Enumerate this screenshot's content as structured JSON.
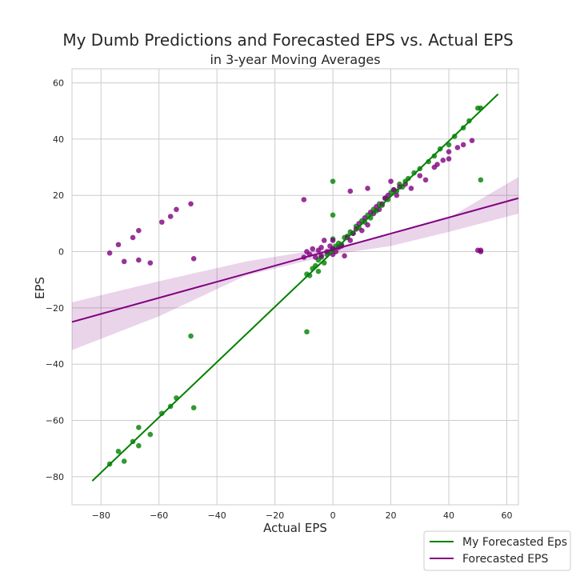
{
  "chart_data": {
    "type": "scatter",
    "title": "My Dumb Predictions and Forecasted EPS vs. Actual EPS",
    "subtitle": "in 3-year Moving Averages",
    "xlabel": "Actual EPS",
    "ylabel": "EPS",
    "xlim": [
      -90,
      64
    ],
    "ylim": [
      -90,
      65
    ],
    "xticks": [
      -80,
      -60,
      -40,
      -20,
      0,
      20,
      40,
      60
    ],
    "yticks": [
      -80,
      -60,
      -40,
      -20,
      0,
      20,
      40,
      60
    ],
    "grid": true,
    "legend_position": "bottom-right",
    "series": [
      {
        "name": "My Forecasted Eps",
        "color": "#008000",
        "points": [
          [
            -77,
            -75.5
          ],
          [
            -74,
            -71
          ],
          [
            -72,
            -74.5
          ],
          [
            -69,
            -67.5
          ],
          [
            -67,
            -69
          ],
          [
            -67,
            -62.5
          ],
          [
            -63,
            -65
          ],
          [
            -59,
            -57.5
          ],
          [
            -56,
            -55
          ],
          [
            -54,
            -52
          ],
          [
            -49,
            -30
          ],
          [
            -48,
            -55.5
          ],
          [
            -9,
            -28.5
          ],
          [
            -9,
            -8
          ],
          [
            -8,
            -8.5
          ],
          [
            -7,
            -6
          ],
          [
            -6,
            -5
          ],
          [
            -5,
            -7
          ],
          [
            -5,
            -3
          ],
          [
            -4,
            -2
          ],
          [
            -3,
            -4
          ],
          [
            -2,
            -1
          ],
          [
            -1,
            0
          ],
          [
            0,
            1
          ],
          [
            0,
            25
          ],
          [
            0,
            13
          ],
          [
            0,
            4.5
          ],
          [
            1,
            2
          ],
          [
            2,
            3
          ],
          [
            3,
            2.5
          ],
          [
            4,
            5
          ],
          [
            5,
            5.5
          ],
          [
            6,
            7
          ],
          [
            7,
            6.5
          ],
          [
            8,
            9
          ],
          [
            9,
            8.5
          ],
          [
            10,
            11
          ],
          [
            11,
            10.5
          ],
          [
            12,
            13
          ],
          [
            13,
            12
          ],
          [
            14,
            15
          ],
          [
            15,
            14.5
          ],
          [
            16,
            17
          ],
          [
            17,
            16.5
          ],
          [
            18,
            19
          ],
          [
            19,
            18.5
          ],
          [
            20,
            21
          ],
          [
            21,
            22
          ],
          [
            22,
            21.5
          ],
          [
            23,
            24
          ],
          [
            24,
            23
          ],
          [
            25,
            25
          ],
          [
            26,
            26
          ],
          [
            28,
            28
          ],
          [
            30,
            29.5
          ],
          [
            33,
            32
          ],
          [
            35,
            34
          ],
          [
            37,
            36.5
          ],
          [
            40,
            38
          ],
          [
            42,
            41
          ],
          [
            45,
            44
          ],
          [
            47,
            46.5
          ],
          [
            50,
            51
          ],
          [
            51,
            51
          ],
          [
            51,
            25.5
          ]
        ],
        "fit": {
          "x": [
            -83,
            57
          ],
          "y": [
            -81.5,
            56
          ]
        }
      },
      {
        "name": "Forecasted EPS",
        "color": "#800080",
        "points": [
          [
            -77,
            -0.5
          ],
          [
            -74,
            2.5
          ],
          [
            -72,
            -3.5
          ],
          [
            -69,
            5
          ],
          [
            -67,
            7.5
          ],
          [
            -67,
            -3
          ],
          [
            -63,
            -4
          ],
          [
            -59,
            10.5
          ],
          [
            -56,
            12.5
          ],
          [
            -54,
            15
          ],
          [
            -49,
            17
          ],
          [
            -48,
            -2.5
          ],
          [
            -10,
            18.5
          ],
          [
            -10,
            -2
          ],
          [
            -9,
            0
          ],
          [
            -8,
            -1
          ],
          [
            -7,
            1
          ],
          [
            -6,
            -2
          ],
          [
            -5,
            0.5
          ],
          [
            -4,
            1.5
          ],
          [
            -4,
            -1.5
          ],
          [
            -3,
            4
          ],
          [
            -2,
            0
          ],
          [
            -1,
            2
          ],
          [
            0,
            4
          ],
          [
            0,
            1
          ],
          [
            0,
            -1
          ],
          [
            1,
            0
          ],
          [
            2,
            1.5
          ],
          [
            3,
            2
          ],
          [
            4,
            -1.5
          ],
          [
            5,
            5
          ],
          [
            6,
            4
          ],
          [
            6,
            21.5
          ],
          [
            7,
            6.5
          ],
          [
            8,
            8
          ],
          [
            9,
            10
          ],
          [
            10,
            7.5
          ],
          [
            11,
            12
          ],
          [
            12,
            9.5
          ],
          [
            12,
            22.5
          ],
          [
            13,
            14
          ],
          [
            14,
            13.5
          ],
          [
            15,
            16
          ],
          [
            16,
            15
          ],
          [
            17,
            17
          ],
          [
            18,
            19
          ],
          [
            19,
            20
          ],
          [
            20,
            25
          ],
          [
            21,
            22
          ],
          [
            22,
            20
          ],
          [
            23,
            23
          ],
          [
            25,
            24
          ],
          [
            27,
            22.5
          ],
          [
            30,
            27
          ],
          [
            32,
            25.5
          ],
          [
            35,
            30
          ],
          [
            38,
            32.5
          ],
          [
            40,
            33
          ],
          [
            43,
            37
          ],
          [
            45,
            38
          ],
          [
            48,
            39.5
          ],
          [
            51,
            0.5
          ],
          [
            51,
            0
          ],
          [
            50,
            0.5
          ],
          [
            40,
            35.5
          ],
          [
            36,
            31
          ]
        ],
        "fit": {
          "x": [
            -90,
            64
          ],
          "y": [
            -25,
            19
          ]
        },
        "band": {
          "x": [
            -90,
            -60,
            -30,
            0,
            20,
            40,
            64
          ],
          "upper": [
            -18,
            -10.5,
            -3.5,
            1.5,
            6,
            12,
            26.5
          ],
          "lower": [
            -35,
            -23,
            -8.5,
            -1,
            2,
            7,
            13.5
          ]
        }
      }
    ]
  }
}
